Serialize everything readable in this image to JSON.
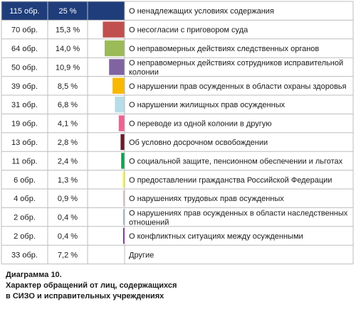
{
  "chart_data": {
    "type": "bar",
    "orientation": "horizontal",
    "rows": [
      {
        "count": "115 обр.",
        "percent_label": "25 %",
        "value": 25,
        "color": "#1f3d7a",
        "label_lines": [
          "О ненадлежащих условиях содержания"
        ]
      },
      {
        "count": "70 обр.",
        "percent_label": "15,3 %",
        "value": 15.3,
        "color": "#c0504d",
        "label_lines": [
          "О несогласии  с приговором суда"
        ]
      },
      {
        "count": "64 обр.",
        "percent_label": "14,0 %",
        "value": 14.0,
        "color": "#9bbb59",
        "label_lines": [
          "О неправомерных  действиях следственных органов"
        ]
      },
      {
        "count": "50 обр.",
        "percent_label": "10,9 %",
        "value": 10.9,
        "color": "#8064a2",
        "label_lines": [
          "О неправомерных действиях сотрудников исправительной",
          "колонии"
        ]
      },
      {
        "count": "39 обр.",
        "percent_label": "8,5 %",
        "value": 8.5,
        "color": "#f9b800",
        "label_lines": [
          "О нарушении прав осужденных в области охраны здоровья"
        ]
      },
      {
        "count": "31 обр.",
        "percent_label": "6,8 %",
        "value": 6.8,
        "color": "#b7dde8",
        "label_lines": [
          "О нарушении жилищных прав осужденных"
        ]
      },
      {
        "count": "19 обр.",
        "percent_label": "4,1 %",
        "value": 4.1,
        "color": "#f06292",
        "label_lines": [
          "О переводе из одной  колонии  в  другую"
        ]
      },
      {
        "count": "13 обр.",
        "percent_label": "2,8 %",
        "value": 2.8,
        "color": "#6b1a2a",
        "label_lines": [
          "Об условно досрочном освобождении"
        ]
      },
      {
        "count": "11 обр.",
        "percent_label": "2,4 %",
        "value": 2.4,
        "color": "#00a651",
        "label_lines": [
          "О социальной защите, пенсионном обеспечении и льготах"
        ]
      },
      {
        "count": "6 обр.",
        "percent_label": "1,3 %",
        "value": 1.3,
        "color": "#ffff00",
        "label_lines": [
          "О предоставлении гражданства Российской Федерации"
        ]
      },
      {
        "count": "4 обр.",
        "percent_label": "0,9 %",
        "value": 0.9,
        "color": "#e6b8b7",
        "label_lines": [
          "О нарушениях трудовых прав осужденных"
        ]
      },
      {
        "count": "2 обр.",
        "percent_label": "0,4 %",
        "value": 0.4,
        "color": "#95b3d7",
        "label_lines": [
          "О нарушениях прав осужденных в области наследственных",
          "отношений"
        ]
      },
      {
        "count": "2 обр.",
        "percent_label": "0,4 %",
        "value": 0.4,
        "color": "#9900cc",
        "label_lines": [
          "О  конфликтных ситуациях между осужденными"
        ]
      },
      {
        "count": "33 обр.",
        "percent_label": "7,2 %",
        "value": 7.2,
        "color": null,
        "label_lines": [
          "Другие"
        ]
      }
    ],
    "highlight_row_color": "#1f3d7a"
  },
  "caption": {
    "line1": "Диаграмма 10.",
    "line2": "Характер обращений от лиц, содержащихся",
    "line3": "в СИЗО и исправительных учреждениях"
  }
}
